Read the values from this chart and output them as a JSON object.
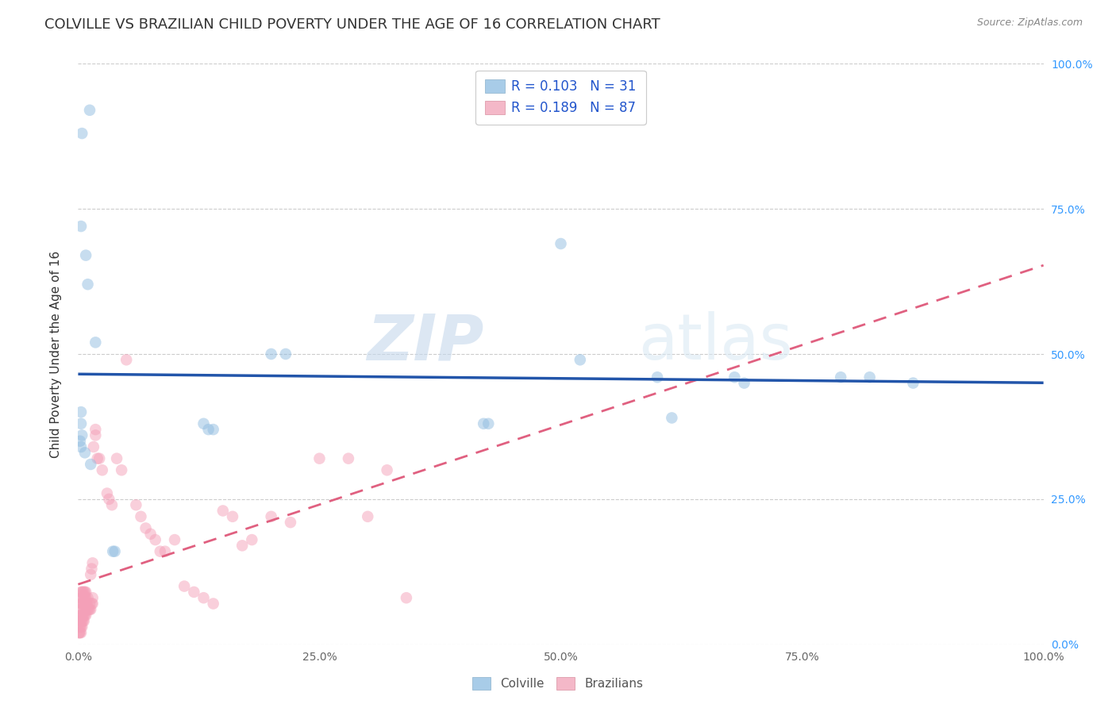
{
  "title": "COLVILLE VS BRAZILIAN CHILD POVERTY UNDER THE AGE OF 16 CORRELATION CHART",
  "source": "Source: ZipAtlas.com",
  "ylabel": "Child Poverty Under the Age of 16",
  "watermark_zip": "ZIP",
  "watermark_atlas": "atlas",
  "legend_labels_bottom": [
    "Colville",
    "Brazilians"
  ],
  "colville_color": "#90bce0",
  "brazilian_color": "#f4a0b8",
  "colville_line_color": "#2255aa",
  "brazilian_line_color": "#e06080",
  "colville_points": [
    [
      0.004,
      0.88
    ],
    [
      0.012,
      0.92
    ],
    [
      0.003,
      0.72
    ],
    [
      0.008,
      0.67
    ],
    [
      0.01,
      0.62
    ],
    [
      0.003,
      0.4
    ],
    [
      0.003,
      0.38
    ],
    [
      0.004,
      0.36
    ],
    [
      0.003,
      0.34
    ],
    [
      0.007,
      0.33
    ],
    [
      0.013,
      0.31
    ],
    [
      0.002,
      0.35
    ],
    [
      0.018,
      0.52
    ],
    [
      0.036,
      0.16
    ],
    [
      0.038,
      0.16
    ],
    [
      0.13,
      0.38
    ],
    [
      0.135,
      0.37
    ],
    [
      0.14,
      0.37
    ],
    [
      0.2,
      0.5
    ],
    [
      0.215,
      0.5
    ],
    [
      0.42,
      0.38
    ],
    [
      0.425,
      0.38
    ],
    [
      0.5,
      0.69
    ],
    [
      0.52,
      0.49
    ],
    [
      0.6,
      0.46
    ],
    [
      0.615,
      0.39
    ],
    [
      0.68,
      0.46
    ],
    [
      0.69,
      0.45
    ],
    [
      0.79,
      0.46
    ],
    [
      0.82,
      0.46
    ],
    [
      0.865,
      0.45
    ]
  ],
  "brazilian_points": [
    [
      0.001,
      0.02
    ],
    [
      0.001,
      0.02
    ],
    [
      0.001,
      0.03
    ],
    [
      0.001,
      0.04
    ],
    [
      0.002,
      0.02
    ],
    [
      0.002,
      0.03
    ],
    [
      0.002,
      0.04
    ],
    [
      0.002,
      0.05
    ],
    [
      0.003,
      0.02
    ],
    [
      0.003,
      0.03
    ],
    [
      0.003,
      0.04
    ],
    [
      0.003,
      0.05
    ],
    [
      0.003,
      0.06
    ],
    [
      0.003,
      0.07
    ],
    [
      0.003,
      0.08
    ],
    [
      0.003,
      0.09
    ],
    [
      0.004,
      0.03
    ],
    [
      0.004,
      0.04
    ],
    [
      0.004,
      0.05
    ],
    [
      0.004,
      0.07
    ],
    [
      0.004,
      0.08
    ],
    [
      0.004,
      0.09
    ],
    [
      0.005,
      0.04
    ],
    [
      0.005,
      0.05
    ],
    [
      0.005,
      0.06
    ],
    [
      0.005,
      0.07
    ],
    [
      0.005,
      0.09
    ],
    [
      0.006,
      0.04
    ],
    [
      0.006,
      0.05
    ],
    [
      0.006,
      0.07
    ],
    [
      0.006,
      0.08
    ],
    [
      0.006,
      0.09
    ],
    [
      0.007,
      0.05
    ],
    [
      0.007,
      0.06
    ],
    [
      0.007,
      0.08
    ],
    [
      0.007,
      0.09
    ],
    [
      0.008,
      0.05
    ],
    [
      0.008,
      0.07
    ],
    [
      0.008,
      0.08
    ],
    [
      0.008,
      0.09
    ],
    [
      0.009,
      0.06
    ],
    [
      0.009,
      0.07
    ],
    [
      0.01,
      0.06
    ],
    [
      0.01,
      0.08
    ],
    [
      0.011,
      0.06
    ],
    [
      0.012,
      0.06
    ],
    [
      0.012,
      0.07
    ],
    [
      0.013,
      0.06
    ],
    [
      0.014,
      0.07
    ],
    [
      0.015,
      0.07
    ],
    [
      0.015,
      0.08
    ],
    [
      0.016,
      0.34
    ],
    [
      0.018,
      0.36
    ],
    [
      0.018,
      0.37
    ],
    [
      0.02,
      0.32
    ],
    [
      0.022,
      0.32
    ],
    [
      0.025,
      0.3
    ],
    [
      0.03,
      0.26
    ],
    [
      0.032,
      0.25
    ],
    [
      0.035,
      0.24
    ],
    [
      0.04,
      0.32
    ],
    [
      0.045,
      0.3
    ],
    [
      0.05,
      0.49
    ],
    [
      0.06,
      0.24
    ],
    [
      0.065,
      0.22
    ],
    [
      0.07,
      0.2
    ],
    [
      0.075,
      0.19
    ],
    [
      0.08,
      0.18
    ],
    [
      0.085,
      0.16
    ],
    [
      0.09,
      0.16
    ],
    [
      0.1,
      0.18
    ],
    [
      0.11,
      0.1
    ],
    [
      0.12,
      0.09
    ],
    [
      0.13,
      0.08
    ],
    [
      0.14,
      0.07
    ],
    [
      0.15,
      0.23
    ],
    [
      0.16,
      0.22
    ],
    [
      0.17,
      0.17
    ],
    [
      0.18,
      0.18
    ],
    [
      0.2,
      0.22
    ],
    [
      0.22,
      0.21
    ],
    [
      0.25,
      0.32
    ],
    [
      0.28,
      0.32
    ],
    [
      0.3,
      0.22
    ],
    [
      0.32,
      0.3
    ],
    [
      0.34,
      0.08
    ],
    [
      0.013,
      0.12
    ],
    [
      0.014,
      0.13
    ],
    [
      0.015,
      0.14
    ]
  ],
  "xlim": [
    0,
    1.0
  ],
  "ylim": [
    0,
    1.0
  ],
  "xticks": [
    0.0,
    0.25,
    0.5,
    0.75,
    1.0
  ],
  "yticks": [
    0.0,
    0.25,
    0.5,
    0.75,
    1.0
  ],
  "xticklabels": [
    "0.0%",
    "25.0%",
    "50.0%",
    "75.0%",
    "100.0%"
  ],
  "right_ytick_labels": [
    "0.0%",
    "25.0%",
    "50.0%",
    "75.0%",
    "100.0%"
  ],
  "background_color": "#ffffff",
  "grid_color": "#cccccc",
  "title_fontsize": 13,
  "axis_label_fontsize": 11,
  "tick_fontsize": 10,
  "scatter_size": 110,
  "scatter_alpha": 0.5
}
